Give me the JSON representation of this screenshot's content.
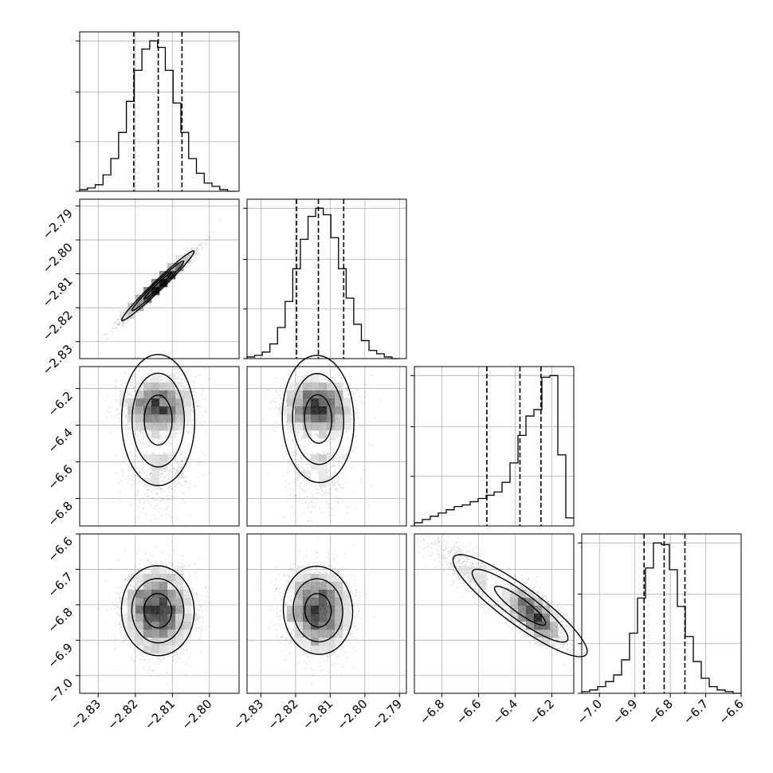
{
  "chart_data": {
    "type": "corner",
    "grid": true,
    "panels": [
      {
        "id": "hist-0",
        "type": "histogram",
        "xlim": [
          -2.835,
          -2.792
        ],
        "bin_start": -2.835,
        "bin_width": 0.0021,
        "counts": [
          1,
          2,
          4,
          10,
          20,
          36,
          55,
          74,
          87,
          92,
          88,
          74,
          54,
          36,
          20,
          11,
          5,
          3,
          1,
          0
        ],
        "quantiles": [
          -2.8204,
          -2.8138,
          -2.8074
        ]
      },
      {
        "id": "hist-1",
        "type": "histogram",
        "xlim": [
          -2.834,
          -2.788
        ],
        "bin_start": -2.834,
        "bin_width": 0.0022,
        "counts": [
          1,
          2,
          4,
          9,
          19,
          35,
          55,
          73,
          87,
          92,
          88,
          74,
          55,
          37,
          21,
          11,
          5,
          3,
          1,
          0
        ],
        "quantiles": [
          -2.8197,
          -2.8134,
          -2.8061
        ]
      },
      {
        "id": "hist-2",
        "type": "histogram",
        "xlim": [
          -6.95,
          -6.08
        ],
        "bin_start": -6.95,
        "bin_width": 0.0435,
        "counts": [
          2,
          4,
          6,
          8,
          10,
          12,
          13,
          15,
          17,
          19,
          21,
          27,
          39,
          56,
          68,
          72,
          92,
          93,
          44,
          5
        ],
        "quantiles": [
          -6.5544,
          -6.3738,
          -6.2591
        ]
      },
      {
        "id": "hist-3",
        "type": "histogram",
        "xlim": [
          -7.05,
          -6.6
        ],
        "bin_start": -7.05,
        "bin_width": 0.0225,
        "counts": [
          1,
          2,
          4,
          7,
          11,
          20,
          36,
          57,
          75,
          90,
          89,
          74,
          52,
          34,
          19,
          9,
          4,
          2,
          1,
          0
        ],
        "quantiles": [
          -6.8741,
          -6.8173,
          -6.7587
        ]
      },
      {
        "id": "scatter-1-0",
        "type": "hist2d",
        "xlim": [
          -2.835,
          -2.792
        ],
        "ylim": [
          -2.835,
          -2.788
        ],
        "n_points": 2500,
        "mean": [
          -2.8138,
          -2.8134
        ],
        "sd": [
          0.0046,
          0.0048
        ],
        "corr": 0.98
      },
      {
        "id": "scatter-2-0",
        "type": "hist2d",
        "xlim": [
          -2.835,
          -2.792
        ],
        "ylim": [
          -6.95,
          -6.08
        ],
        "n_points": 2500,
        "mean": [
          -2.8138,
          -6.38
        ],
        "sd": [
          0.0046,
          0.16
        ],
        "corr": 0.0
      },
      {
        "id": "scatter-2-1",
        "type": "hist2d",
        "xlim": [
          -2.834,
          -2.788
        ],
        "ylim": [
          -6.95,
          -6.08
        ],
        "n_points": 2500,
        "mean": [
          -2.8134,
          -6.38
        ],
        "sd": [
          0.0048,
          0.16
        ],
        "corr": 0.0
      },
      {
        "id": "scatter-3-0",
        "type": "hist2d",
        "xlim": [
          -2.835,
          -2.792
        ],
        "ylim": [
          -7.05,
          -6.6
        ],
        "n_points": 2500,
        "mean": [
          -2.8138,
          -6.8173
        ],
        "sd": [
          0.0046,
          0.06
        ],
        "corr": 0.0
      },
      {
        "id": "scatter-3-1",
        "type": "hist2d",
        "xlim": [
          -2.834,
          -2.788
        ],
        "ylim": [
          -7.05,
          -6.6
        ],
        "n_points": 2500,
        "mean": [
          -2.8134,
          -6.8173
        ],
        "sd": [
          0.0048,
          0.06
        ],
        "corr": 0.0
      },
      {
        "id": "scatter-3-2",
        "type": "hist2d",
        "xlim": [
          -6.95,
          -6.08
        ],
        "ylim": [
          -7.05,
          -6.6
        ],
        "n_points": 2500,
        "mean": [
          -6.38,
          -6.82
        ],
        "sd": [
          0.16,
          0.06
        ],
        "corr": -0.9
      }
    ],
    "axes": {
      "y_row1": {
        "ticks": [
          -2.83,
          -2.82,
          -2.81,
          -2.8,
          -2.79
        ],
        "labels": [
          "−2.83",
          "−2.82",
          "−2.81",
          "−2.80",
          "−2.79"
        ]
      },
      "y_row2": {
        "ticks": [
          -6.8,
          -6.6,
          -6.4,
          -6.2
        ],
        "labels": [
          "−6.8",
          "−6.6",
          "−6.4",
          "−6.2"
        ]
      },
      "y_row3": {
        "ticks": [
          -7.0,
          -6.9,
          -6.8,
          -6.7,
          -6.6
        ],
        "labels": [
          "−7.0",
          "−6.9",
          "−6.8",
          "−6.7",
          "−6.6"
        ]
      },
      "x_col0": {
        "ticks": [
          -2.83,
          -2.82,
          -2.81,
          -2.8
        ],
        "labels": [
          "−2.83",
          "−2.82",
          "−2.81",
          "−2.80"
        ]
      },
      "x_col1": {
        "ticks": [
          -2.83,
          -2.82,
          -2.81,
          -2.8,
          -2.79
        ],
        "labels": [
          "−2.83",
          "−2.82",
          "−2.81",
          "−2.80",
          "−2.79"
        ]
      },
      "x_col2": {
        "ticks": [
          -6.8,
          -6.6,
          -6.4,
          -6.2
        ],
        "labels": [
          "−6.8",
          "−6.6",
          "−6.4",
          "−6.2"
        ]
      },
      "x_col3": {
        "ticks": [
          -7.0,
          -6.9,
          -6.8,
          -6.7,
          -6.6
        ],
        "labels": [
          "−7.0",
          "−6.9",
          "−6.8",
          "−6.7",
          "−6.6"
        ]
      }
    }
  }
}
